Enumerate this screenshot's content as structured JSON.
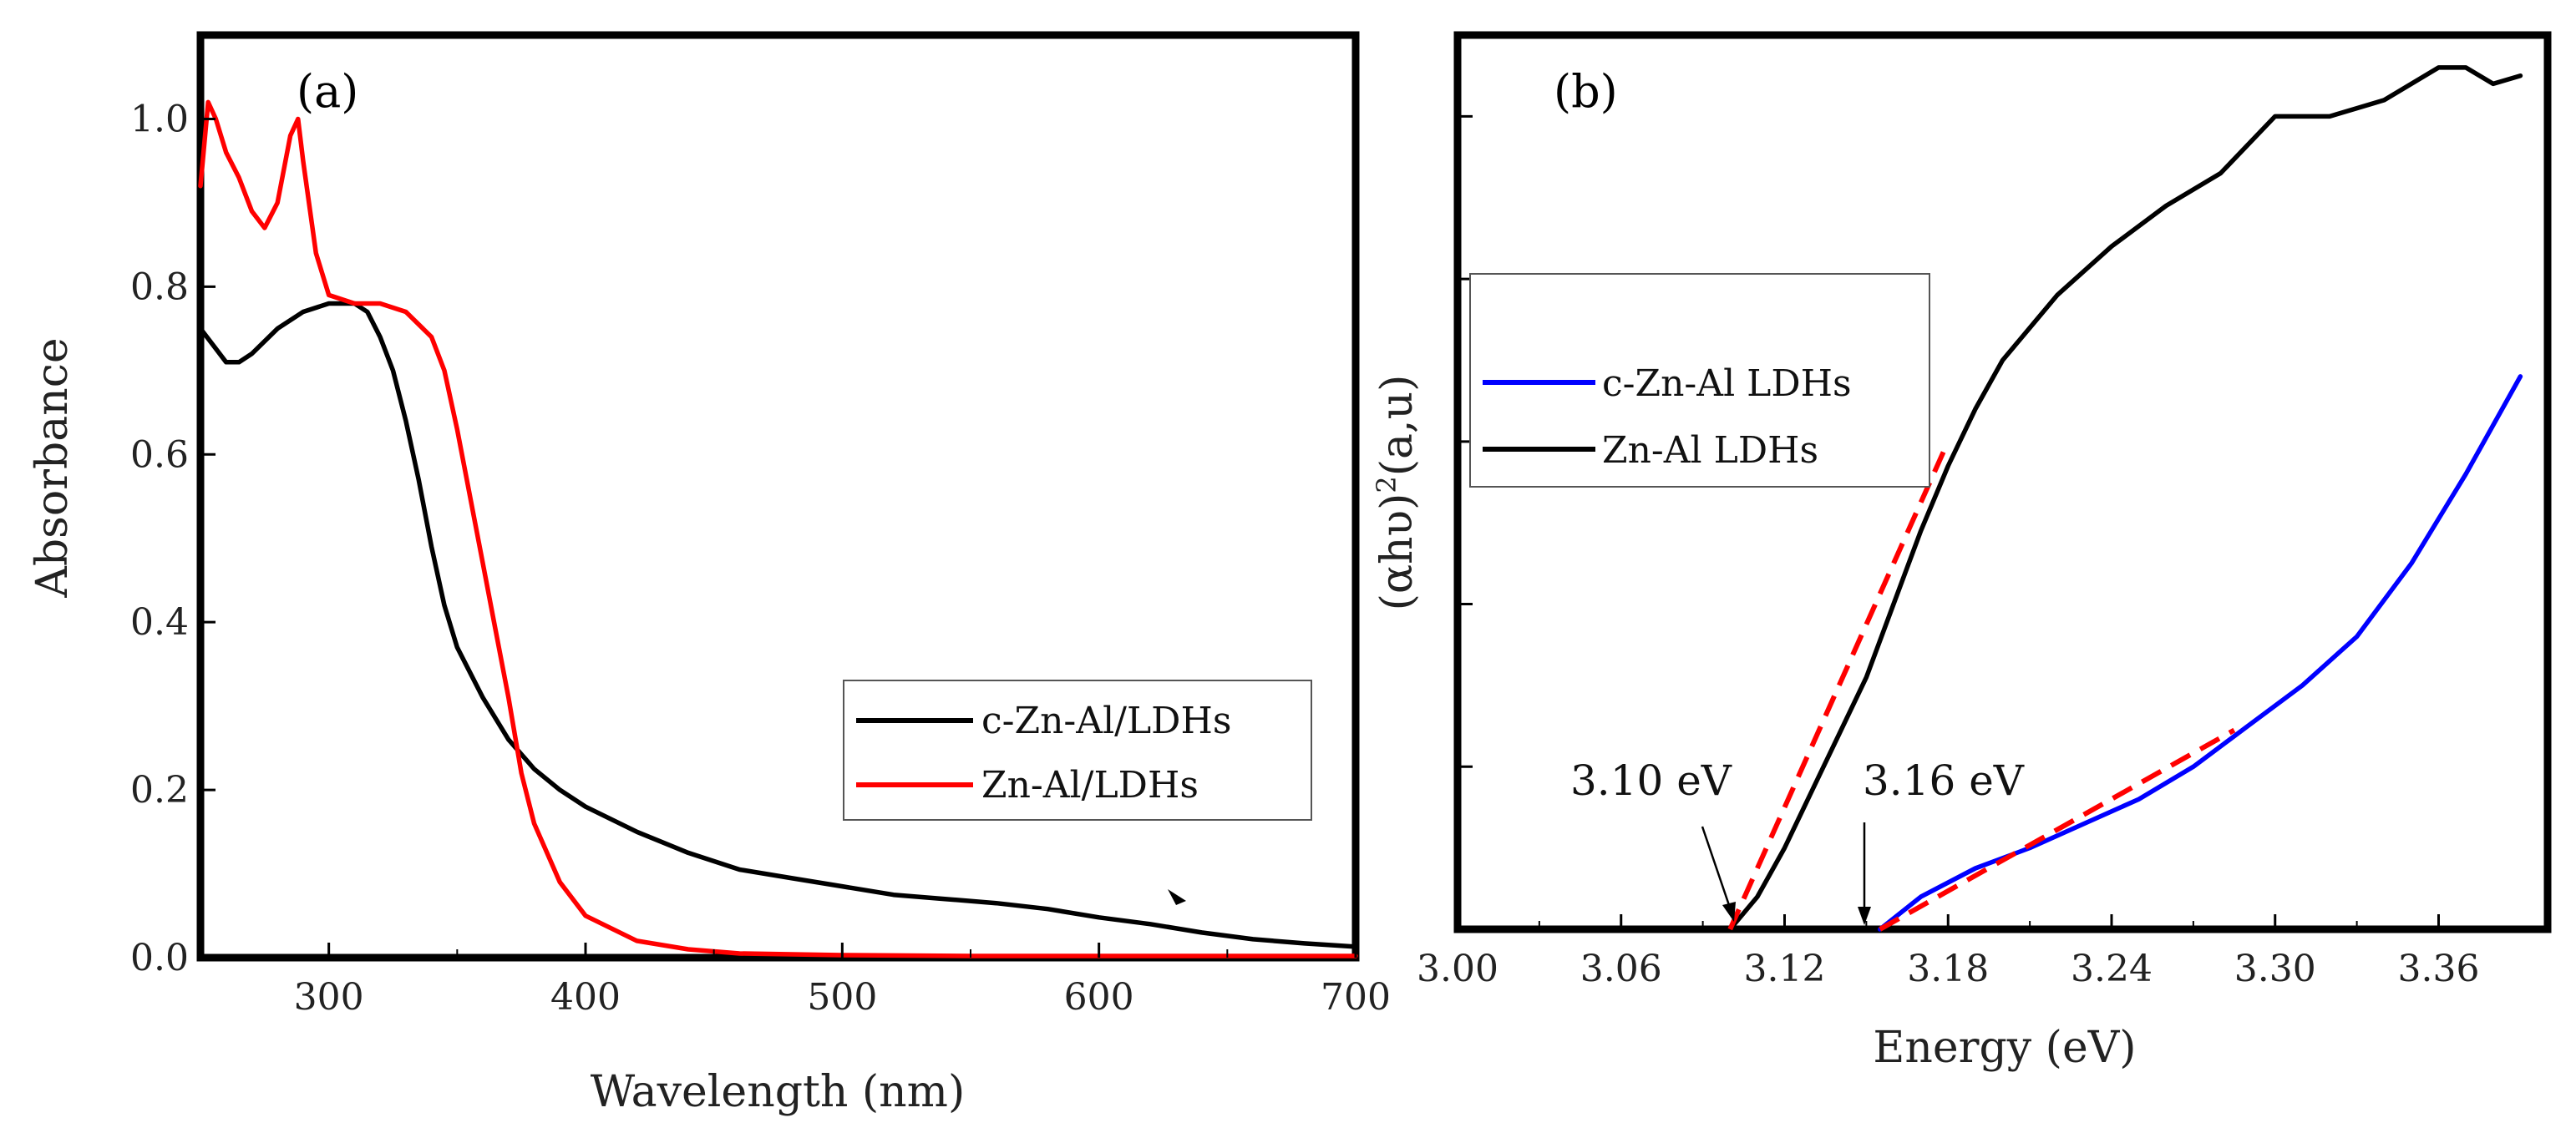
{
  "chart_data": [
    {
      "type": "line",
      "panel": "(a)",
      "title": "",
      "xlabel": "Wavelength (nm)",
      "ylabel": "Absorbance",
      "xlim": [
        250,
        700
      ],
      "ylim": [
        0,
        1.1
      ],
      "xticks": [
        300,
        400,
        500,
        600,
        700
      ],
      "yticks": [
        0.0,
        0.2,
        0.4,
        0.6,
        0.8,
        1.0
      ],
      "xtick_labels": [
        "300",
        "400",
        "500",
        "600",
        "700"
      ],
      "ytick_labels": [
        "0.0",
        "0.2",
        "0.4",
        "0.6",
        "0.8",
        "1.0"
      ],
      "legend_position": "center-right",
      "series": [
        {
          "name": "c-Zn-Al/LDHs",
          "color": "#000000",
          "x": [
            250,
            255,
            260,
            265,
            270,
            280,
            290,
            300,
            310,
            315,
            320,
            325,
            330,
            335,
            340,
            345,
            350,
            360,
            370,
            380,
            390,
            400,
            420,
            440,
            460,
            480,
            500,
            520,
            540,
            560,
            580,
            600,
            620,
            640,
            660,
            680,
            700
          ],
          "y": [
            0.75,
            0.73,
            0.71,
            0.71,
            0.72,
            0.75,
            0.77,
            0.78,
            0.78,
            0.77,
            0.74,
            0.7,
            0.64,
            0.57,
            0.49,
            0.42,
            0.37,
            0.31,
            0.26,
            0.225,
            0.2,
            0.18,
            0.15,
            0.125,
            0.105,
            0.095,
            0.085,
            0.075,
            0.07,
            0.065,
            0.058,
            0.048,
            0.04,
            0.03,
            0.022,
            0.017,
            0.013
          ]
        },
        {
          "name": "Zn-Al/LDHs",
          "color": "#ff0000",
          "x": [
            250,
            253,
            256,
            260,
            265,
            270,
            275,
            280,
            285,
            288,
            290,
            295,
            300,
            310,
            320,
            330,
            340,
            345,
            350,
            355,
            360,
            365,
            370,
            375,
            380,
            390,
            400,
            420,
            440,
            460,
            500,
            550,
            600,
            650,
            700
          ],
          "y": [
            0.92,
            1.02,
            1.0,
            0.96,
            0.93,
            0.89,
            0.87,
            0.9,
            0.98,
            1.0,
            0.95,
            0.84,
            0.79,
            0.78,
            0.78,
            0.77,
            0.74,
            0.7,
            0.63,
            0.55,
            0.47,
            0.39,
            0.31,
            0.22,
            0.16,
            0.09,
            0.05,
            0.02,
            0.01,
            0.005,
            0.003,
            0.002,
            0.002,
            0.002,
            0.002
          ]
        }
      ],
      "annotations": []
    },
    {
      "type": "line",
      "panel": "(b)",
      "title": "",
      "xlabel": "Energy (eV)",
      "ylabel": "(αhυ)²(a,u)",
      "ylabel_base": "(αhυ)",
      "ylabel_sup": "2",
      "ylabel_tail": "(a,u)",
      "xlim": [
        3.0,
        3.4
      ],
      "ylim": [
        0,
        1.1
      ],
      "xticks": [
        3.0,
        3.06,
        3.12,
        3.18,
        3.24,
        3.3,
        3.36
      ],
      "xtick_labels": [
        "3.00",
        "3.06",
        "3.12",
        "3.18",
        "3.24",
        "3.30",
        "3.36"
      ],
      "yticks_unlabeled": [
        0.2,
        0.4,
        0.6,
        0.8,
        1.0
      ],
      "legend_position": "upper-left",
      "series": [
        {
          "name": "c-Zn-Al LDHs",
          "color": "#0000ff",
          "x": [
            3.155,
            3.17,
            3.19,
            3.21,
            3.23,
            3.25,
            3.27,
            3.29,
            3.31,
            3.33,
            3.35,
            3.37,
            3.39
          ],
          "y": [
            0.0,
            0.04,
            0.075,
            0.1,
            0.13,
            0.16,
            0.2,
            0.25,
            0.3,
            0.36,
            0.45,
            0.56,
            0.68
          ]
        },
        {
          "name": "Zn-Al LDHs",
          "color": "#000000",
          "x": [
            3.1,
            3.11,
            3.12,
            3.13,
            3.14,
            3.15,
            3.16,
            3.17,
            3.18,
            3.19,
            3.2,
            3.22,
            3.24,
            3.26,
            3.28,
            3.3,
            3.32,
            3.34,
            3.36,
            3.37,
            3.38,
            3.39
          ],
          "y": [
            0.0,
            0.04,
            0.1,
            0.17,
            0.24,
            0.31,
            0.4,
            0.49,
            0.57,
            0.64,
            0.7,
            0.78,
            0.84,
            0.89,
            0.93,
            1.0,
            1.0,
            1.02,
            1.06,
            1.06,
            1.04,
            1.05
          ]
        }
      ],
      "fit_lines": [
        {
          "x": [
            3.1,
            3.18
          ],
          "y": [
            0.0,
            0.6
          ],
          "color": "#ff0000",
          "style": "dashed"
        },
        {
          "x": [
            3.155,
            3.285
          ],
          "y": [
            0.0,
            0.245
          ],
          "color": "#ff0000",
          "style": "dashed"
        }
      ],
      "annotations": [
        {
          "text": "3.10 eV",
          "x": 3.1,
          "y": 0.0
        },
        {
          "text": "3.16 eV",
          "x": 3.15,
          "y": 0.0
        }
      ]
    }
  ]
}
